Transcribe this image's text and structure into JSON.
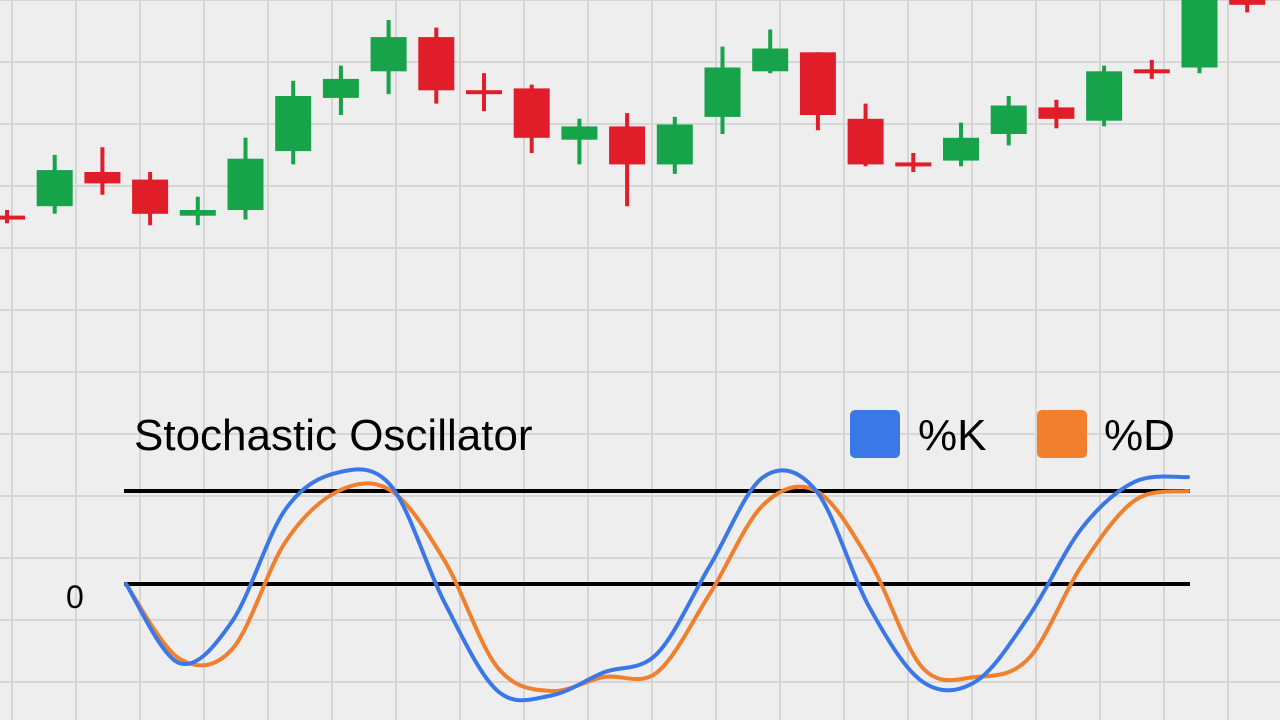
{
  "colors": {
    "background": "#eeeeee",
    "grid": "#d6d6d6",
    "bullish": "#16a34a",
    "bearish": "#e11d2a",
    "k_line": "#3b78e7",
    "d_line": "#f07f2e",
    "reference_line": "#000000",
    "text": "#000000"
  },
  "chart_data": [
    {
      "type": "candlestick",
      "title": "",
      "grid": true,
      "ylim": [
        0,
        100
      ],
      "candles": [
        {
          "open": 48.0,
          "high": 50.0,
          "low": 46.5,
          "close": 48.0
        },
        {
          "open": 51.0,
          "high": 64.5,
          "low": 49.0,
          "close": 60.5
        },
        {
          "open": 60.0,
          "high": 66.5,
          "low": 54.0,
          "close": 57.0
        },
        {
          "open": 58.0,
          "high": 60.0,
          "low": 46.0,
          "close": 49.0
        },
        {
          "open": 48.5,
          "high": 53.5,
          "low": 46.0,
          "close": 50.0
        },
        {
          "open": 50.0,
          "high": 69.0,
          "low": 47.5,
          "close": 63.5
        },
        {
          "open": 65.5,
          "high": 84.0,
          "low": 62.0,
          "close": 80.0
        },
        {
          "open": 79.5,
          "high": 88.0,
          "low": 75.0,
          "close": 84.5
        },
        {
          "open": 86.5,
          "high": 100.0,
          "low": 80.5,
          "close": 95.5
        },
        {
          "open": 95.5,
          "high": 98.0,
          "low": 78.0,
          "close": 81.5
        },
        {
          "open": 81.0,
          "high": 86.0,
          "low": 76.0,
          "close": 81.0
        },
        {
          "open": 82.0,
          "high": 83.0,
          "low": 65.0,
          "close": 69.0
        },
        {
          "open": 68.5,
          "high": 74.0,
          "low": 62.0,
          "close": 72.0
        },
        {
          "open": 72.0,
          "high": 75.5,
          "low": 51.0,
          "close": 62.0
        },
        {
          "open": 62.0,
          "high": 74.5,
          "low": 59.5,
          "close": 72.5
        },
        {
          "open": 74.5,
          "high": 93.0,
          "low": 70.0,
          "close": 87.5
        },
        {
          "open": 86.5,
          "high": 97.5,
          "low": 86.0,
          "close": 92.5
        },
        {
          "open": 91.5,
          "high": 91.5,
          "low": 71.0,
          "close": 75.0
        },
        {
          "open": 74.0,
          "high": 78.0,
          "low": 61.5,
          "close": 62.0
        },
        {
          "open": 62.0,
          "high": 65.0,
          "low": 60.0,
          "close": 62.0
        },
        {
          "open": 63.0,
          "high": 73.0,
          "low": 61.5,
          "close": 69.0
        },
        {
          "open": 70.0,
          "high": 80.0,
          "low": 67.0,
          "close": 77.5
        },
        {
          "open": 77.0,
          "high": 79.0,
          "low": 71.5,
          "close": 74.0
        },
        {
          "open": 73.5,
          "high": 88.0,
          "low": 72.0,
          "close": 86.5
        },
        {
          "open": 86.5,
          "high": 89.5,
          "low": 84.5,
          "close": 86.5
        },
        {
          "open": 87.5,
          "high": 107.0,
          "low": 86.0,
          "close": 106.5
        },
        {
          "open": 107.0,
          "high": 108.5,
          "low": 102.0,
          "close": 104.0
        }
      ]
    },
    {
      "type": "line",
      "title": "Stochastic Oscillator",
      "ylabel": "",
      "y_ticks": [
        {
          "value": 0,
          "label": "0"
        }
      ],
      "reference_lines": [
        100,
        0
      ],
      "ylim": [
        -125,
        120
      ],
      "legend": "top-right",
      "x": [
        0,
        5,
        10,
        15,
        20,
        25,
        30,
        35,
        40,
        45,
        50,
        55,
        60,
        65,
        70,
        75,
        80,
        85,
        90,
        95,
        100
      ],
      "series": [
        {
          "name": "%K",
          "color_key": "k_line",
          "values": [
            0,
            -85,
            -40,
            80,
            120,
            105,
            -20,
            -115,
            -120,
            -95,
            -75,
            20,
            115,
            100,
            -25,
            -105,
            -105,
            -35,
            60,
            110,
            115
          ]
        },
        {
          "name": "%D",
          "color_key": "d_line",
          "values": [
            0,
            -80,
            -70,
            45,
            100,
            100,
            25,
            -90,
            -115,
            -100,
            -95,
            -10,
            85,
            100,
            25,
            -90,
            -100,
            -80,
            20,
            90,
            100
          ]
        }
      ]
    }
  ]
}
